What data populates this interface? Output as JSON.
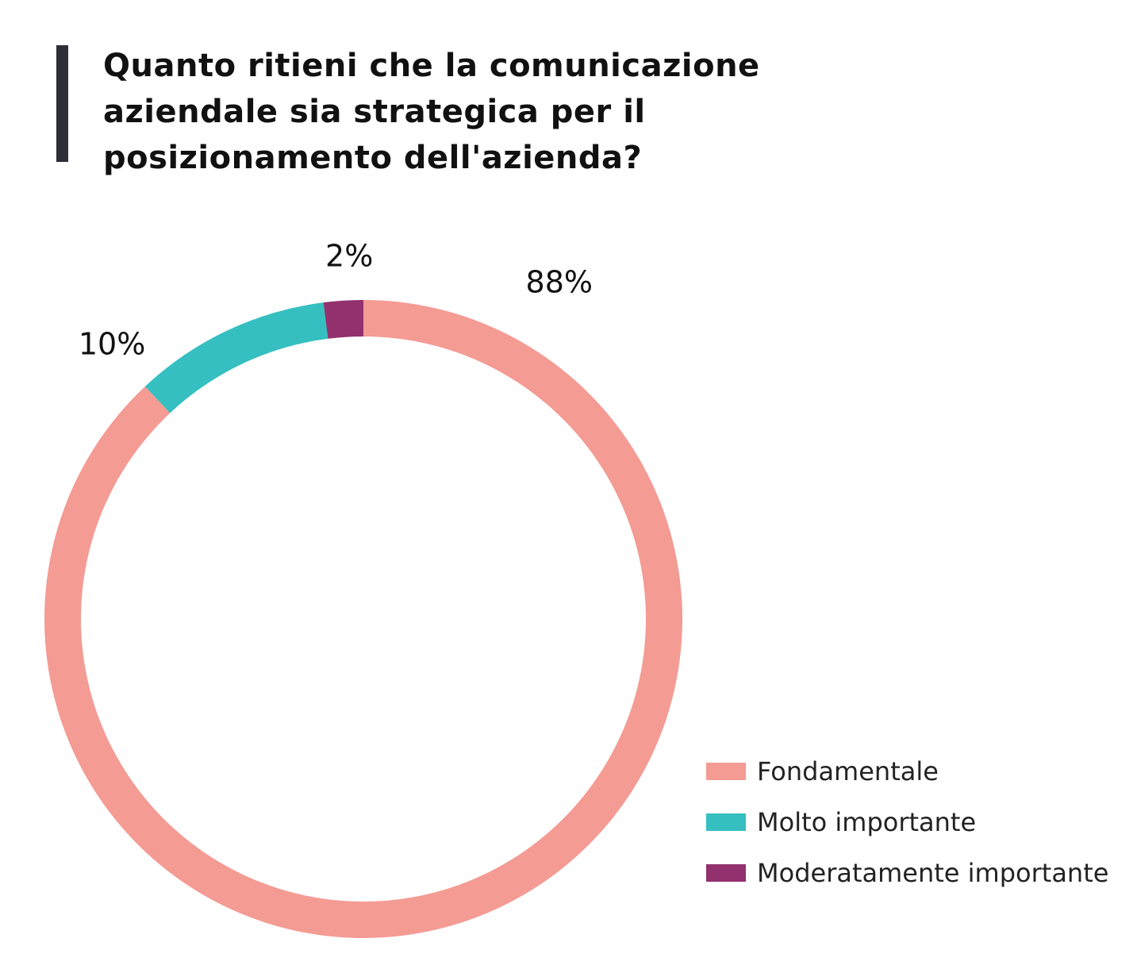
{
  "title_lines": [
    "Quanto ritieni che la comunicazione",
    "aziendale sia strategica per il",
    "posizionamento dell'azienda?"
  ],
  "chart_data": {
    "type": "pie",
    "style": "donut",
    "title": "Quanto ritieni che la comunicazione aziendale sia strategica per il posizionamento dell'azienda?",
    "slices": [
      {
        "label": "Fondamentale",
        "value": 88,
        "value_label": "88%",
        "color": "#f49b94"
      },
      {
        "label": "Molto importante",
        "value": 10,
        "value_label": "10%",
        "color": "#36bfc0"
      },
      {
        "label": "Moderatamente importante",
        "value": 2,
        "value_label": "2%",
        "color": "#93306e"
      }
    ],
    "legend_position": "bottom-right"
  }
}
